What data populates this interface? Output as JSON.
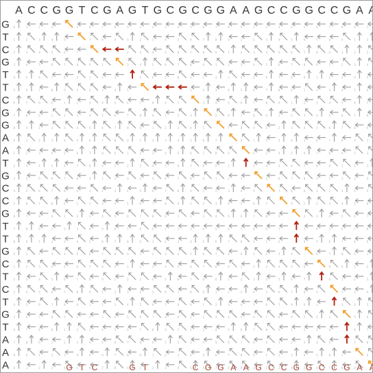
{
  "top_sequence": "ACCGGTCGAGTGCGCGGAAGCCGGCCGAA",
  "left_sequence": "GTCGTTCGGAATGCCGTTGCTCTGTAAA",
  "aligned_bottom": [
    {
      "col": 4,
      "base": "G"
    },
    {
      "col": 5,
      "base": "T"
    },
    {
      "col": 6,
      "base": "C"
    },
    {
      "col": 9,
      "base": "G"
    },
    {
      "col": 10,
      "base": "T"
    },
    {
      "col": 14,
      "base": "C"
    },
    {
      "col": 15,
      "base": "G"
    },
    {
      "col": 16,
      "base": "G"
    },
    {
      "col": 17,
      "base": "A"
    },
    {
      "col": 18,
      "base": "A"
    },
    {
      "col": 19,
      "base": "G"
    },
    {
      "col": 20,
      "base": "C"
    },
    {
      "col": 21,
      "base": "C"
    },
    {
      "col": 22,
      "base": "G"
    },
    {
      "col": 23,
      "base": "G"
    },
    {
      "col": 24,
      "base": "C"
    },
    {
      "col": 25,
      "base": "C"
    },
    {
      "col": 26,
      "base": "G"
    },
    {
      "col": 27,
      "base": "A"
    },
    {
      "col": 28,
      "base": "A"
    }
  ],
  "traceback_path": [
    {
      "row": 0,
      "col": 4,
      "dir": "diag"
    },
    {
      "row": 1,
      "col": 5,
      "dir": "diag"
    },
    {
      "row": 2,
      "col": 6,
      "dir": "diag"
    },
    {
      "row": 2,
      "col": 7,
      "dir": "left"
    },
    {
      "row": 2,
      "col": 8,
      "dir": "left"
    },
    {
      "row": 3,
      "col": 8,
      "dir": "diag"
    },
    {
      "row": 4,
      "col": 9,
      "dir": "up"
    },
    {
      "row": 5,
      "col": 10,
      "dir": "diag"
    },
    {
      "row": 5,
      "col": 11,
      "dir": "left"
    },
    {
      "row": 5,
      "col": 12,
      "dir": "left"
    },
    {
      "row": 5,
      "col": 13,
      "dir": "left"
    },
    {
      "row": 6,
      "col": 14,
      "dir": "diag"
    },
    {
      "row": 7,
      "col": 15,
      "dir": "diag"
    },
    {
      "row": 8,
      "col": 16,
      "dir": "diag"
    },
    {
      "row": 9,
      "col": 17,
      "dir": "diag"
    },
    {
      "row": 10,
      "col": 18,
      "dir": "diag"
    },
    {
      "row": 11,
      "col": 18,
      "dir": "up"
    },
    {
      "row": 12,
      "col": 19,
      "dir": "diag"
    },
    {
      "row": 13,
      "col": 20,
      "dir": "diag"
    },
    {
      "row": 14,
      "col": 21,
      "dir": "diag"
    },
    {
      "row": 15,
      "col": 22,
      "dir": "diag"
    },
    {
      "row": 16,
      "col": 22,
      "dir": "up"
    },
    {
      "row": 17,
      "col": 22,
      "dir": "up"
    },
    {
      "row": 18,
      "col": 23,
      "dir": "diag"
    },
    {
      "row": 19,
      "col": 24,
      "dir": "diag"
    },
    {
      "row": 20,
      "col": 24,
      "dir": "up"
    },
    {
      "row": 21,
      "col": 25,
      "dir": "diag"
    },
    {
      "row": 22,
      "col": 25,
      "dir": "up"
    },
    {
      "row": 23,
      "col": 26,
      "dir": "diag"
    },
    {
      "row": 24,
      "col": 26,
      "dir": "up"
    },
    {
      "row": 25,
      "col": 26,
      "dir": "up"
    },
    {
      "row": 26,
      "col": 27,
      "dir": "diag"
    },
    {
      "row": 27,
      "col": 28,
      "dir": "diag"
    }
  ],
  "colors": {
    "arrow": "#9a9a9a",
    "number": "#b0b0b0",
    "diag_path": "#f0a030",
    "gap_path": "#b02010",
    "label": "#333333",
    "bottom_label": "#a0402a",
    "border": "#9a9a9a"
  }
}
